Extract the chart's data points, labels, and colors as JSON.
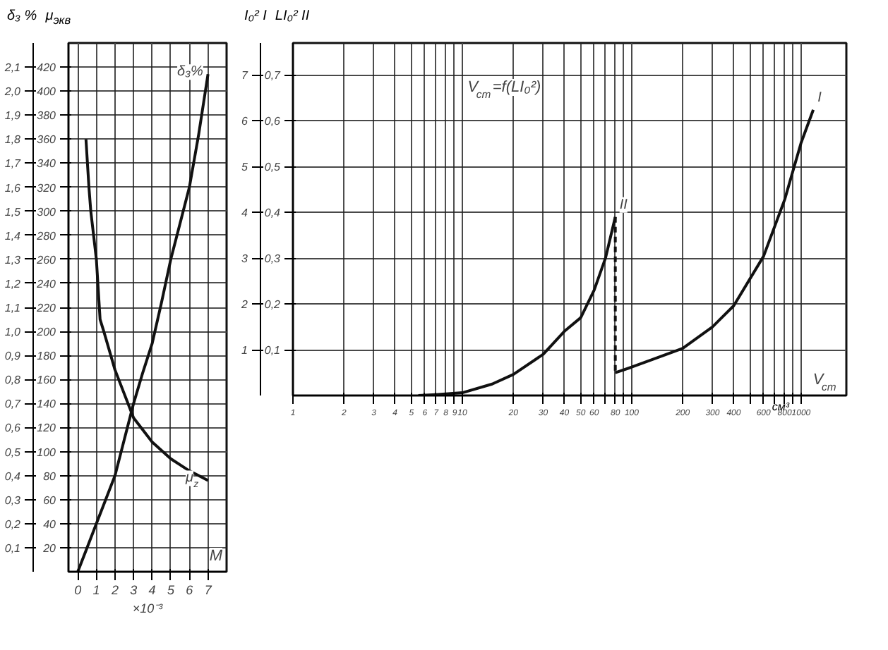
{
  "chart_data": [
    {
      "type": "line",
      "xlabel": "M",
      "ylabel": "δ₃ %",
      "y2label": "μ$_{экв}$",
      "annotations": [
        "×10⁻³"
      ],
      "xlim": [
        -0.5,
        8
      ],
      "xticks": [
        0,
        1,
        2,
        3,
        4,
        5,
        6,
        7
      ],
      "ylim": [
        0,
        2.2
      ],
      "yticks": [
        {
          "value": 0.1,
          "label": "0,1"
        },
        {
          "value": 0.2,
          "label": "0,2"
        },
        {
          "value": 0.3,
          "label": "0,3"
        },
        {
          "value": 0.4,
          "label": "0,4"
        },
        {
          "value": 0.5,
          "label": "0,5"
        },
        {
          "value": 0.6,
          "label": "0,6"
        },
        {
          "value": 0.7,
          "label": "0,7"
        },
        {
          "value": 0.8,
          "label": "0,8"
        },
        {
          "value": 0.9,
          "label": "0,9"
        },
        {
          "value": 1.0,
          "label": "1,0"
        },
        {
          "value": 1.1,
          "label": "1,1"
        },
        {
          "value": 1.2,
          "label": "1,2"
        },
        {
          "value": 1.3,
          "label": "1,3"
        },
        {
          "value": 1.4,
          "label": "1,4"
        },
        {
          "value": 1.5,
          "label": "1,5"
        },
        {
          "value": 1.6,
          "label": "1,6"
        },
        {
          "value": 1.7,
          "label": "1,7"
        },
        {
          "value": 1.8,
          "label": "1,8"
        },
        {
          "value": 1.9,
          "label": "1,9"
        },
        {
          "value": 2.0,
          "label": "2,0"
        },
        {
          "value": 2.1,
          "label": "2,1"
        }
      ],
      "y2lim": [
        0,
        440
      ],
      "y2ticks": [
        20,
        40,
        60,
        80,
        100,
        120,
        140,
        160,
        180,
        200,
        220,
        240,
        260,
        280,
        300,
        320,
        340,
        360,
        380,
        400,
        420
      ],
      "grid": true,
      "series": [
        {
          "name": "δ₃%",
          "color": "#111111",
          "x": [
            0,
            0.5,
            1,
            1.5,
            2,
            2.5,
            3,
            3.5,
            4,
            4.5,
            5,
            5.5,
            6,
            6.5,
            7
          ],
          "values": [
            0,
            0.1,
            0.2,
            0.3,
            0.4,
            0.55,
            0.7,
            0.83,
            0.95,
            1.12,
            1.3,
            1.45,
            1.6,
            1.82,
            2.07
          ]
        },
        {
          "name": "μ$_{z}$",
          "color": "#111111",
          "axis": "y2",
          "x": [
            0.44,
            0.6,
            0.7,
            1,
            1.2,
            1.4,
            2,
            3,
            4,
            5,
            6,
            7
          ],
          "values": [
            360,
            320,
            300,
            260,
            210,
            200,
            168,
            128,
            108,
            94,
            84,
            76
          ]
        }
      ]
    },
    {
      "type": "line",
      "xlabel": "V$_{cm}$",
      "ylabel": "I₀² I",
      "y2label": "LI₀² II",
      "log": "x",
      "annotations": [
        "V$_{cm}$=f(LI₀²)",
        "см³"
      ],
      "xlim": [
        1,
        1850
      ],
      "xticks": [
        1,
        2,
        3,
        4,
        5,
        6,
        7,
        8,
        9,
        10,
        20,
        30,
        40,
        50,
        60,
        {
          "value": 70,
          "label": null
        },
        80,
        {
          "value": 90,
          "label": null
        },
        100,
        200,
        300,
        400,
        {
          "value": 500,
          "label": null
        },
        600,
        {
          "value": 700,
          "label": null
        },
        800,
        {
          "value": 900,
          "label": null
        },
        1000
      ],
      "ylim": [
        0,
        7.7
      ],
      "yticks": [
        1,
        2,
        3,
        4,
        5,
        6,
        7
      ],
      "y2lim": [
        0,
        0.77
      ],
      "y2ticks": [
        {
          "value": 0.1,
          "label": "0,1"
        },
        {
          "value": 0.2,
          "label": "0,2"
        },
        {
          "value": 0.3,
          "label": "0,3"
        },
        {
          "value": 0.4,
          "label": "0,4"
        },
        {
          "value": 0.5,
          "label": "0,5"
        },
        {
          "value": 0.6,
          "label": "0,6"
        },
        {
          "value": 0.7,
          "label": "0,7"
        }
      ],
      "grid": true,
      "series": [
        {
          "name": "II",
          "color": "#111111",
          "axis": "y2",
          "x": [
            5.5,
            7,
            10,
            15,
            20,
            30,
            40,
            50,
            60,
            70,
            80
          ],
          "values": [
            0,
            0.002,
            0.006,
            0.025,
            0.046,
            0.09,
            0.14,
            0.17,
            0.23,
            0.3,
            0.39
          ]
        },
        {
          "color": "#111111",
          "axis": "y2",
          "line_style": "dashed",
          "x": [
            80,
            80
          ],
          "values": [
            0.39,
            0.05
          ]
        },
        {
          "name": "I",
          "color": "#111111",
          "x": [
            80,
            100,
            200,
            300,
            400,
            600,
            800,
            1000,
            1180
          ],
          "values": [
            0.5,
            0.62,
            1.03,
            1.5,
            1.96,
            3.04,
            4.28,
            5.52,
            6.24
          ]
        }
      ]
    }
  ]
}
